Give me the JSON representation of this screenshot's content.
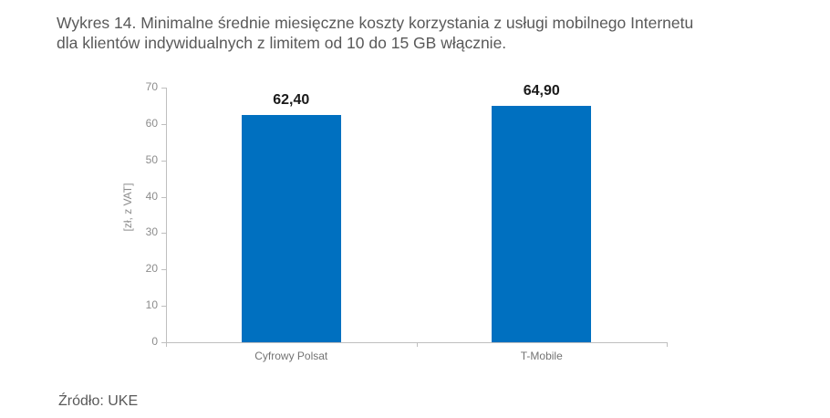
{
  "title_lines": [
    "Wykres 14. Minimalne średnie miesięczne koszty korzystania z usługi mobilnego Internetu",
    "dla klientów indywidualnych z limitem od 10 do 15 GB włącznie."
  ],
  "source": "Źródło: UKE",
  "colors": {
    "bar": "#0070c0",
    "axis": "#bfbfbf",
    "text": "#595959"
  },
  "chart_data": {
    "type": "bar",
    "title": "Wykres 14. Minimalne średnie miesięczne koszty korzystania z usługi mobilnego Internetu dla klientów indywidualnych z limitem od 10 do 15 GB włącznie.",
    "categories": [
      "Cyfrowy Polsat",
      "T-Mobile"
    ],
    "values": [
      62.4,
      64.9
    ],
    "value_labels": [
      "62,40",
      "64,90"
    ],
    "xlabel": "",
    "ylabel": "[zł, z VAT]",
    "ylim": [
      0,
      70
    ],
    "yticks": [
      0,
      10,
      20,
      30,
      40,
      50,
      60,
      70
    ],
    "grid": false,
    "legend": null,
    "source": "Źródło: UKE"
  }
}
